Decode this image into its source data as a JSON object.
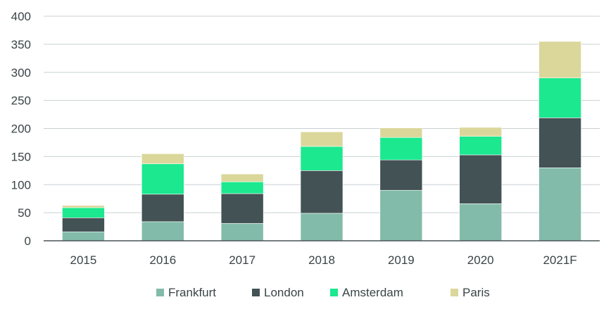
{
  "chart_data": {
    "type": "bar",
    "stacked": true,
    "title": "",
    "xlabel": "",
    "ylabel": "",
    "ylim": [
      0,
      400
    ],
    "yticks": [
      0,
      50,
      100,
      150,
      200,
      250,
      300,
      350,
      400
    ],
    "grid": true,
    "legend_position": "bottom-center",
    "categories": [
      "2015",
      "2016",
      "2017",
      "2018",
      "2019",
      "2020",
      "2021F"
    ],
    "series": [
      {
        "name": "Frankfurt",
        "color": "#82bba9",
        "values": [
          16,
          34,
          31,
          49,
          90,
          66,
          130
        ]
      },
      {
        "name": "London",
        "color": "#435254",
        "values": [
          25,
          49,
          53,
          76,
          54,
          87,
          89
        ]
      },
      {
        "name": "Amsterdam",
        "color": "#1be88f",
        "values": [
          18,
          54,
          21,
          43,
          40,
          33,
          71
        ]
      },
      {
        "name": "Paris",
        "color": "#dbd79b",
        "values": [
          4,
          18,
          14,
          26,
          17,
          16,
          65
        ]
      }
    ]
  }
}
